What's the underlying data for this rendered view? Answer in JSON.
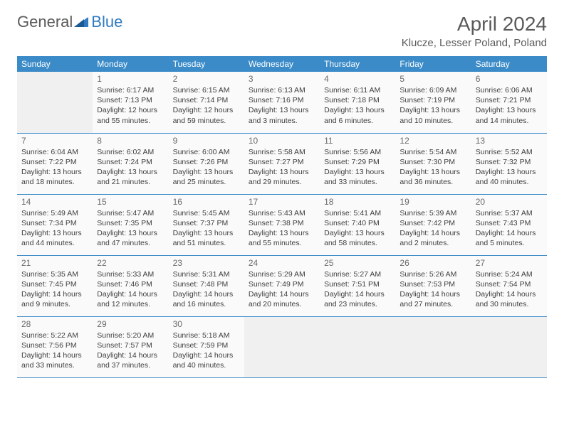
{
  "branding": {
    "logo_word1": "General",
    "logo_word2": "Blue",
    "logo_color_text": "#5a5a5a",
    "logo_color_accent": "#2f7ac0"
  },
  "header": {
    "title": "April 2024",
    "location": "Klucze, Lesser Poland, Poland"
  },
  "colors": {
    "header_bg": "#3b8bc8",
    "header_fg": "#ffffff",
    "cell_border": "#3b8bc8",
    "cell_bg": "#fafafa",
    "empty_bg": "#f0f0f0",
    "text": "#404040",
    "daynum": "#6a6a6a"
  },
  "weekdays": [
    "Sunday",
    "Monday",
    "Tuesday",
    "Wednesday",
    "Thursday",
    "Friday",
    "Saturday"
  ],
  "grid": {
    "rows": 5,
    "cols": 7,
    "first_day_offset": 1,
    "days_in_month": 30
  },
  "days": {
    "1": {
      "sunrise": "6:17 AM",
      "sunset": "7:13 PM",
      "daylight": "12 hours and 55 minutes."
    },
    "2": {
      "sunrise": "6:15 AM",
      "sunset": "7:14 PM",
      "daylight": "12 hours and 59 minutes."
    },
    "3": {
      "sunrise": "6:13 AM",
      "sunset": "7:16 PM",
      "daylight": "13 hours and 3 minutes."
    },
    "4": {
      "sunrise": "6:11 AM",
      "sunset": "7:18 PM",
      "daylight": "13 hours and 6 minutes."
    },
    "5": {
      "sunrise": "6:09 AM",
      "sunset": "7:19 PM",
      "daylight": "13 hours and 10 minutes."
    },
    "6": {
      "sunrise": "6:06 AM",
      "sunset": "7:21 PM",
      "daylight": "13 hours and 14 minutes."
    },
    "7": {
      "sunrise": "6:04 AM",
      "sunset": "7:22 PM",
      "daylight": "13 hours and 18 minutes."
    },
    "8": {
      "sunrise": "6:02 AM",
      "sunset": "7:24 PM",
      "daylight": "13 hours and 21 minutes."
    },
    "9": {
      "sunrise": "6:00 AM",
      "sunset": "7:26 PM",
      "daylight": "13 hours and 25 minutes."
    },
    "10": {
      "sunrise": "5:58 AM",
      "sunset": "7:27 PM",
      "daylight": "13 hours and 29 minutes."
    },
    "11": {
      "sunrise": "5:56 AM",
      "sunset": "7:29 PM",
      "daylight": "13 hours and 33 minutes."
    },
    "12": {
      "sunrise": "5:54 AM",
      "sunset": "7:30 PM",
      "daylight": "13 hours and 36 minutes."
    },
    "13": {
      "sunrise": "5:52 AM",
      "sunset": "7:32 PM",
      "daylight": "13 hours and 40 minutes."
    },
    "14": {
      "sunrise": "5:49 AM",
      "sunset": "7:34 PM",
      "daylight": "13 hours and 44 minutes."
    },
    "15": {
      "sunrise": "5:47 AM",
      "sunset": "7:35 PM",
      "daylight": "13 hours and 47 minutes."
    },
    "16": {
      "sunrise": "5:45 AM",
      "sunset": "7:37 PM",
      "daylight": "13 hours and 51 minutes."
    },
    "17": {
      "sunrise": "5:43 AM",
      "sunset": "7:38 PM",
      "daylight": "13 hours and 55 minutes."
    },
    "18": {
      "sunrise": "5:41 AM",
      "sunset": "7:40 PM",
      "daylight": "13 hours and 58 minutes."
    },
    "19": {
      "sunrise": "5:39 AM",
      "sunset": "7:42 PM",
      "daylight": "14 hours and 2 minutes."
    },
    "20": {
      "sunrise": "5:37 AM",
      "sunset": "7:43 PM",
      "daylight": "14 hours and 5 minutes."
    },
    "21": {
      "sunrise": "5:35 AM",
      "sunset": "7:45 PM",
      "daylight": "14 hours and 9 minutes."
    },
    "22": {
      "sunrise": "5:33 AM",
      "sunset": "7:46 PM",
      "daylight": "14 hours and 12 minutes."
    },
    "23": {
      "sunrise": "5:31 AM",
      "sunset": "7:48 PM",
      "daylight": "14 hours and 16 minutes."
    },
    "24": {
      "sunrise": "5:29 AM",
      "sunset": "7:49 PM",
      "daylight": "14 hours and 20 minutes."
    },
    "25": {
      "sunrise": "5:27 AM",
      "sunset": "7:51 PM",
      "daylight": "14 hours and 23 minutes."
    },
    "26": {
      "sunrise": "5:26 AM",
      "sunset": "7:53 PM",
      "daylight": "14 hours and 27 minutes."
    },
    "27": {
      "sunrise": "5:24 AM",
      "sunset": "7:54 PM",
      "daylight": "14 hours and 30 minutes."
    },
    "28": {
      "sunrise": "5:22 AM",
      "sunset": "7:56 PM",
      "daylight": "14 hours and 33 minutes."
    },
    "29": {
      "sunrise": "5:20 AM",
      "sunset": "7:57 PM",
      "daylight": "14 hours and 37 minutes."
    },
    "30": {
      "sunrise": "5:18 AM",
      "sunset": "7:59 PM",
      "daylight": "14 hours and 40 minutes."
    }
  },
  "labels": {
    "sunrise": "Sunrise:",
    "sunset": "Sunset:",
    "daylight": "Daylight:"
  }
}
